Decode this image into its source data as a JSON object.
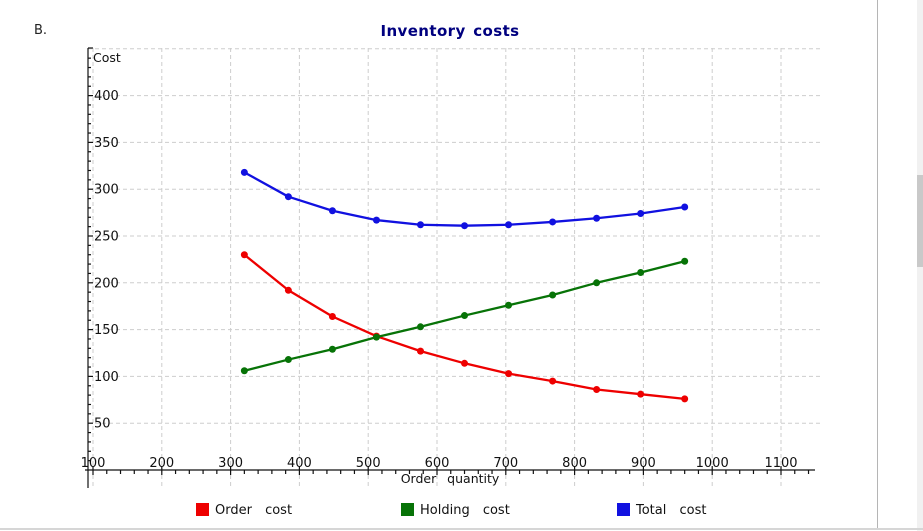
{
  "page": {
    "section_label": "B.",
    "background": "#ffffff",
    "window_border_color": "#b5b5b5",
    "scrollbar_track_color": "#f1f1f1",
    "scrollbar_thumb_color": "#c9c9c9"
  },
  "chart_data": {
    "type": "line",
    "title": "Inventory costs",
    "title_color": "#00007f",
    "xlabel": "Order quantity",
    "ylabel": "Cost",
    "xlim": [
      100,
      1100
    ],
    "ylim": [
      0,
      450
    ],
    "grid": true,
    "grid_color": "#cdcdcd",
    "axis_color": "#111111",
    "legend_position": "bottom",
    "x_ticks": [
      100,
      200,
      300,
      400,
      500,
      600,
      700,
      800,
      900,
      1000,
      1100
    ],
    "y_ticks": [
      50,
      100,
      150,
      200,
      250,
      300,
      350,
      400
    ],
    "x": [
      320,
      384,
      448,
      512,
      576,
      640,
      704,
      768,
      832,
      896,
      960
    ],
    "series": [
      {
        "name": "Order cost",
        "color": "#ee0000",
        "values": [
          230,
          192,
          164,
          143,
          127,
          114,
          103,
          95,
          86,
          81,
          76
        ]
      },
      {
        "name": "Holding cost",
        "color": "#077307",
        "values": [
          106,
          118,
          129,
          142,
          153,
          165,
          176,
          187,
          200,
          211,
          223
        ]
      },
      {
        "name": "Total cost",
        "color": "#1111e0",
        "values": [
          318,
          292,
          277,
          267,
          262,
          261,
          262,
          265,
          269,
          274,
          281
        ]
      }
    ]
  }
}
